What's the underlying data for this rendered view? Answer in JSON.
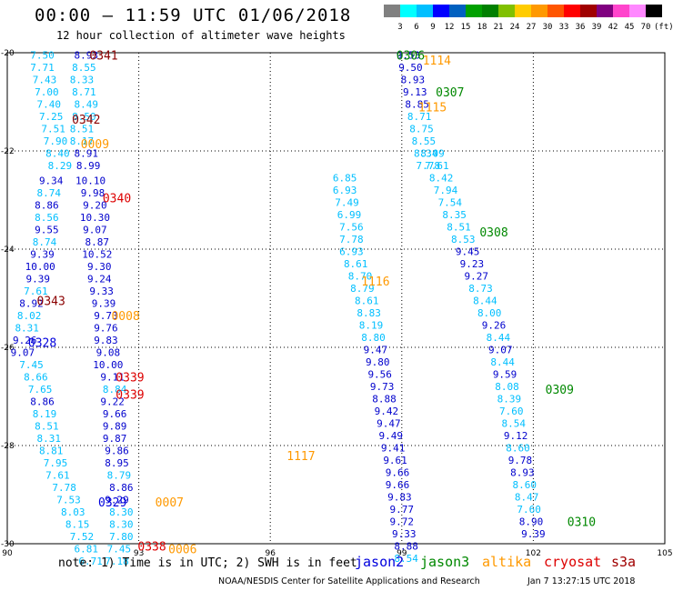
{
  "header": {
    "title": "00:00 – 11:59 UTC 01/06/2018",
    "subtitle": "12 hour collection of altimeter wave heights"
  },
  "colorbar": {
    "unit": "(ft)",
    "labels": [
      "3",
      "6",
      "9",
      "12",
      "15",
      "18",
      "21",
      "24",
      "27",
      "30",
      "33",
      "36",
      "39",
      "42",
      "45",
      "70"
    ],
    "colors": [
      "#808080",
      "#00ffff",
      "#00bfff",
      "#0000ff",
      "#0060c0",
      "#00a000",
      "#008000",
      "#80c000",
      "#ffcc00",
      "#ff9900",
      "#ff5500",
      "#ff0000",
      "#a00000",
      "#800080",
      "#ff44cc",
      "#ff88ff",
      "#000000"
    ]
  },
  "footer": {
    "note": "note: 1) Time is in UTC; 2) SWH is in feet",
    "credit": "NOAA/NESDIS Center for Satellite Applications and Research",
    "timestamp": "Jan 7 13:27:15 UTC 2018",
    "missions": [
      {
        "name": "jason2",
        "color": "#0000dd"
      },
      {
        "name": "jason3",
        "color": "#008800"
      },
      {
        "name": "altika",
        "color": "#ff9900"
      },
      {
        "name": "cryosat",
        "color": "#dd0000"
      },
      {
        "name": "s3a",
        "color": "#a00000"
      }
    ]
  },
  "chart_data": {
    "type": "scatter",
    "xlim": [
      90,
      105
    ],
    "ylim": [
      -30,
      -20
    ],
    "x_ticks": [
      90,
      93,
      96,
      99,
      102,
      105
    ],
    "y_ticks": [
      -20,
      -22,
      -24,
      -26,
      -28,
      -30
    ],
    "grid": true,
    "colors": {
      "low": "#00bfff",
      "mid": "#0000cd"
    },
    "tracks": [
      {
        "points": [
          {
            "x": 90.8,
            "y": -20.05,
            "v": "7.50"
          },
          {
            "x": 90.8,
            "y": -20.3,
            "v": "7.71"
          },
          {
            "x": 90.85,
            "y": -20.55,
            "v": "7.43"
          },
          {
            "x": 90.9,
            "y": -20.8,
            "v": "7.00"
          },
          {
            "x": 90.95,
            "y": -21.05,
            "v": "7.40"
          },
          {
            "x": 91.0,
            "y": -21.3,
            "v": "7.25"
          },
          {
            "x": 91.05,
            "y": -21.55,
            "v": "7.51"
          },
          {
            "x": 91.1,
            "y": -21.8,
            "v": "7.90"
          },
          {
            "x": 91.15,
            "y": -22.05,
            "v": "8.40"
          },
          {
            "x": 91.2,
            "y": -22.3,
            "v": "8.29"
          },
          {
            "x": 91.0,
            "y": -22.6,
            "v": "9.34"
          },
          {
            "x": 90.95,
            "y": -22.85,
            "v": "8.74"
          },
          {
            "x": 90.9,
            "y": -23.1,
            "v": "8.86"
          },
          {
            "x": 90.9,
            "y": -23.35,
            "v": "8.56"
          },
          {
            "x": 90.9,
            "y": -23.6,
            "v": "9.55"
          },
          {
            "x": 90.85,
            "y": -23.85,
            "v": "8.74"
          },
          {
            "x": 90.8,
            "y": -24.1,
            "v": "9.39"
          },
          {
            "x": 90.75,
            "y": -24.35,
            "v": "10.00"
          },
          {
            "x": 90.7,
            "y": -24.6,
            "v": "9.39"
          },
          {
            "x": 90.65,
            "y": -24.85,
            "v": "7.61"
          },
          {
            "x": 90.55,
            "y": -25.1,
            "v": "8.92"
          },
          {
            "x": 90.5,
            "y": -25.35,
            "v": "8.02"
          },
          {
            "x": 90.45,
            "y": -25.6,
            "v": "8.31"
          },
          {
            "x": 90.4,
            "y": -25.85,
            "v": "9.26"
          },
          {
            "x": 90.35,
            "y": -26.1,
            "v": "9.07"
          },
          {
            "x": 90.55,
            "y": -26.35,
            "v": "7.45"
          },
          {
            "x": 90.65,
            "y": -26.6,
            "v": "8.66"
          },
          {
            "x": 90.75,
            "y": -26.85,
            "v": "7.65"
          },
          {
            "x": 90.8,
            "y": -27.1,
            "v": "8.86"
          },
          {
            "x": 90.85,
            "y": -27.35,
            "v": "8.19"
          },
          {
            "x": 90.9,
            "y": -27.6,
            "v": "8.51"
          },
          {
            "x": 90.95,
            "y": -27.85,
            "v": "8.31"
          },
          {
            "x": 91.0,
            "y": -28.1,
            "v": "8.81"
          },
          {
            "x": 91.1,
            "y": -28.35,
            "v": "7.95"
          },
          {
            "x": 91.15,
            "y": -28.6,
            "v": "7.61"
          },
          {
            "x": 91.3,
            "y": -28.85,
            "v": "7.78"
          },
          {
            "x": 91.4,
            "y": -29.1,
            "v": "7.53"
          },
          {
            "x": 91.5,
            "y": -29.35,
            "v": "8.03"
          },
          {
            "x": 91.6,
            "y": -29.6,
            "v": "8.15"
          },
          {
            "x": 91.7,
            "y": -29.85,
            "v": "7.52"
          },
          {
            "x": 91.8,
            "y": -30.1,
            "v": "6.81"
          },
          {
            "x": 91.9,
            "y": -30.35,
            "v": "6.71"
          }
        ]
      },
      {
        "points": [
          {
            "x": 91.8,
            "y": -20.05,
            "v": "8.93"
          },
          {
            "x": 91.75,
            "y": -20.3,
            "v": "8.55"
          },
          {
            "x": 91.7,
            "y": -20.55,
            "v": "8.33"
          },
          {
            "x": 91.75,
            "y": -20.8,
            "v": "8.71"
          },
          {
            "x": 91.8,
            "y": -21.05,
            "v": "8.49"
          },
          {
            "x": 91.75,
            "y": -21.3,
            "v": "8.50"
          },
          {
            "x": 91.7,
            "y": -21.55,
            "v": "8.51"
          },
          {
            "x": 91.7,
            "y": -21.8,
            "v": "8.17"
          },
          {
            "x": 91.8,
            "y": -22.05,
            "v": "8.91"
          },
          {
            "x": 91.85,
            "y": -22.3,
            "v": "8.99"
          },
          {
            "x": 91.9,
            "y": -22.6,
            "v": "10.10"
          },
          {
            "x": 91.95,
            "y": -22.85,
            "v": "9.98"
          },
          {
            "x": 92.0,
            "y": -23.1,
            "v": "9.20"
          },
          {
            "x": 92.0,
            "y": -23.35,
            "v": "10.30"
          },
          {
            "x": 92.0,
            "y": -23.6,
            "v": "9.07"
          },
          {
            "x": 92.05,
            "y": -23.85,
            "v": "8.87"
          },
          {
            "x": 92.05,
            "y": -24.1,
            "v": "10.52"
          },
          {
            "x": 92.1,
            "y": -24.35,
            "v": "9.30"
          },
          {
            "x": 92.1,
            "y": -24.6,
            "v": "9.24"
          },
          {
            "x": 92.15,
            "y": -24.85,
            "v": "9.33"
          },
          {
            "x": 92.2,
            "y": -25.1,
            "v": "9.39"
          },
          {
            "x": 92.25,
            "y": -25.35,
            "v": "9.73"
          },
          {
            "x": 92.25,
            "y": -25.6,
            "v": "9.76"
          },
          {
            "x": 92.25,
            "y": -25.85,
            "v": "9.83"
          },
          {
            "x": 92.3,
            "y": -26.1,
            "v": "9.08"
          },
          {
            "x": 92.3,
            "y": -26.35,
            "v": "10.00"
          },
          {
            "x": 92.4,
            "y": -26.6,
            "v": "9.11"
          },
          {
            "x": 92.45,
            "y": -26.85,
            "v": "8.84"
          },
          {
            "x": 92.4,
            "y": -27.1,
            "v": "9.22"
          },
          {
            "x": 92.45,
            "y": -27.35,
            "v": "9.66"
          },
          {
            "x": 92.45,
            "y": -27.6,
            "v": "9.89"
          },
          {
            "x": 92.45,
            "y": -27.85,
            "v": "9.87"
          },
          {
            "x": 92.5,
            "y": -28.1,
            "v": "9.86"
          },
          {
            "x": 92.5,
            "y": -28.35,
            "v": "8.95"
          },
          {
            "x": 92.55,
            "y": -28.6,
            "v": "8.79"
          },
          {
            "x": 92.6,
            "y": -28.85,
            "v": "8.86"
          },
          {
            "x": 92.5,
            "y": -29.1,
            "v": "9.29"
          },
          {
            "x": 92.6,
            "y": -29.35,
            "v": "8.30"
          },
          {
            "x": 92.6,
            "y": -29.6,
            "v": "8.30"
          },
          {
            "x": 92.6,
            "y": -29.85,
            "v": "7.80"
          },
          {
            "x": 92.55,
            "y": -30.1,
            "v": "7.45"
          },
          {
            "x": 92.5,
            "y": -30.35,
            "v": "7.18"
          }
        ]
      },
      {
        "points": [
          {
            "x": 97.7,
            "y": -22.55,
            "v": "6.85"
          },
          {
            "x": 97.7,
            "y": -22.8,
            "v": "6.93"
          },
          {
            "x": 97.75,
            "y": -23.05,
            "v": "7.49"
          },
          {
            "x": 97.8,
            "y": -23.3,
            "v": "6.99"
          },
          {
            "x": 97.85,
            "y": -23.55,
            "v": "7.56"
          },
          {
            "x": 97.85,
            "y": -23.8,
            "v": "7.78"
          },
          {
            "x": 97.85,
            "y": -24.05,
            "v": "6.93"
          },
          {
            "x": 97.95,
            "y": -24.3,
            "v": "8.61"
          },
          {
            "x": 98.05,
            "y": -24.55,
            "v": "8.70"
          },
          {
            "x": 98.1,
            "y": -24.8,
            "v": "8.79"
          },
          {
            "x": 98.2,
            "y": -25.05,
            "v": "8.61"
          },
          {
            "x": 98.25,
            "y": -25.3,
            "v": "8.83"
          },
          {
            "x": 98.3,
            "y": -25.55,
            "v": "8.19"
          },
          {
            "x": 98.35,
            "y": -25.8,
            "v": "8.80"
          },
          {
            "x": 98.4,
            "y": -26.05,
            "v": "9.47"
          },
          {
            "x": 98.45,
            "y": -26.3,
            "v": "9.80"
          },
          {
            "x": 98.5,
            "y": -26.55,
            "v": "9.56"
          },
          {
            "x": 98.55,
            "y": -26.8,
            "v": "9.73"
          },
          {
            "x": 98.6,
            "y": -27.05,
            "v": "8.88"
          },
          {
            "x": 98.65,
            "y": -27.3,
            "v": "9.42"
          },
          {
            "x": 98.7,
            "y": -27.55,
            "v": "9.47"
          },
          {
            "x": 98.75,
            "y": -27.8,
            "v": "9.49"
          },
          {
            "x": 98.8,
            "y": -28.05,
            "v": "9.41"
          },
          {
            "x": 98.85,
            "y": -28.3,
            "v": "9.61"
          },
          {
            "x": 98.9,
            "y": -28.55,
            "v": "9.66"
          },
          {
            "x": 98.9,
            "y": -28.8,
            "v": "9.66"
          },
          {
            "x": 98.95,
            "y": -29.05,
            "v": "9.83"
          },
          {
            "x": 99.0,
            "y": -29.3,
            "v": "9.77"
          },
          {
            "x": 99.0,
            "y": -29.55,
            "v": "9.72"
          },
          {
            "x": 99.05,
            "y": -29.8,
            "v": "9.33"
          },
          {
            "x": 99.1,
            "y": -30.05,
            "v": "8.88"
          },
          {
            "x": 99.1,
            "y": -30.3,
            "v": "8.54"
          }
        ]
      },
      {
        "points": [
          {
            "x": 99.15,
            "y": -20.05,
            "v": "9.53"
          },
          {
            "x": 99.2,
            "y": -20.3,
            "v": "9.50"
          },
          {
            "x": 99.25,
            "y": -20.55,
            "v": "8.93"
          },
          {
            "x": 99.3,
            "y": -20.8,
            "v": "9.13"
          },
          {
            "x": 99.35,
            "y": -21.05,
            "v": "8.85"
          },
          {
            "x": 99.4,
            "y": -21.3,
            "v": "8.71"
          },
          {
            "x": 99.45,
            "y": -21.55,
            "v": "8.75"
          },
          {
            "x": 99.5,
            "y": -21.8,
            "v": "8.55"
          },
          {
            "x": 99.55,
            "y": -22.05,
            "v": "8.34"
          },
          {
            "x": 99.6,
            "y": -22.3,
            "v": "7.78"
          }
        ]
      },
      {
        "points": [
          {
            "x": 99.7,
            "y": -22.05,
            "v": "8.09"
          },
          {
            "x": 99.8,
            "y": -22.3,
            "v": "7.61"
          },
          {
            "x": 99.9,
            "y": -22.55,
            "v": "8.42"
          },
          {
            "x": 100.0,
            "y": -22.8,
            "v": "7.94"
          },
          {
            "x": 100.1,
            "y": -23.05,
            "v": "7.54"
          },
          {
            "x": 100.2,
            "y": -23.3,
            "v": "8.35"
          },
          {
            "x": 100.3,
            "y": -23.55,
            "v": "8.51"
          },
          {
            "x": 100.4,
            "y": -23.8,
            "v": "8.53"
          },
          {
            "x": 100.5,
            "y": -24.05,
            "v": "9.45"
          },
          {
            "x": 100.6,
            "y": -24.3,
            "v": "9.23"
          },
          {
            "x": 100.7,
            "y": -24.55,
            "v": "9.27"
          },
          {
            "x": 100.8,
            "y": -24.8,
            "v": "8.73"
          },
          {
            "x": 100.9,
            "y": -25.05,
            "v": "8.44"
          },
          {
            "x": 101.0,
            "y": -25.3,
            "v": "8.00"
          },
          {
            "x": 101.1,
            "y": -25.55,
            "v": "9.26"
          },
          {
            "x": 101.2,
            "y": -25.8,
            "v": "8.44"
          },
          {
            "x": 101.25,
            "y": -26.05,
            "v": "9.07"
          },
          {
            "x": 101.3,
            "y": -26.3,
            "v": "8.44"
          },
          {
            "x": 101.35,
            "y": -26.55,
            "v": "9.59"
          },
          {
            "x": 101.4,
            "y": -26.8,
            "v": "8.08"
          },
          {
            "x": 101.45,
            "y": -27.05,
            "v": "8.39"
          },
          {
            "x": 101.5,
            "y": -27.3,
            "v": "7.60"
          },
          {
            "x": 101.55,
            "y": -27.55,
            "v": "8.54"
          },
          {
            "x": 101.6,
            "y": -27.8,
            "v": "9.12"
          },
          {
            "x": 101.65,
            "y": -28.05,
            "v": "8.60"
          },
          {
            "x": 101.7,
            "y": -28.3,
            "v": "9.78"
          },
          {
            "x": 101.75,
            "y": -28.55,
            "v": "8.93"
          },
          {
            "x": 101.8,
            "y": -28.8,
            "v": "8.60"
          },
          {
            "x": 101.85,
            "y": -29.05,
            "v": "8.47"
          },
          {
            "x": 101.9,
            "y": -29.3,
            "v": "7.60"
          },
          {
            "x": 101.95,
            "y": -29.55,
            "v": "8.90"
          },
          {
            "x": 102.0,
            "y": -29.8,
            "v": "9.39"
          }
        ]
      }
    ],
    "pass_labels": [
      {
        "text": "0341",
        "x": 92.2,
        "y": -20.05,
        "color": "#8b0000"
      },
      {
        "text": "0342",
        "x": 91.8,
        "y": -21.35,
        "color": "#8b0000"
      },
      {
        "text": "0009",
        "x": 92.0,
        "y": -21.85,
        "color": "#ff9900"
      },
      {
        "text": "0340",
        "x": 92.5,
        "y": -22.95,
        "color": "#dd0000"
      },
      {
        "text": "0343",
        "x": 91.0,
        "y": -25.05,
        "color": "#8b0000"
      },
      {
        "text": "0008",
        "x": 92.7,
        "y": -25.35,
        "color": "#ff9900"
      },
      {
        "text": "0328",
        "x": 90.8,
        "y": -25.9,
        "color": "#0000dd"
      },
      {
        "text": "0339",
        "x": 92.8,
        "y": -26.6,
        "color": "#dd0000"
      },
      {
        "text": "0339",
        "x": 92.8,
        "y": -26.95,
        "color": "#dd0000"
      },
      {
        "text": "0329",
        "x": 92.4,
        "y": -29.15,
        "color": "#0000dd"
      },
      {
        "text": "0007",
        "x": 93.7,
        "y": -29.15,
        "color": "#ff9900"
      },
      {
        "text": "0338",
        "x": 93.3,
        "y": -30.05,
        "color": "#dd0000"
      },
      {
        "text": "0006",
        "x": 94.0,
        "y": -30.1,
        "color": "#ff9900"
      },
      {
        "text": "0306",
        "x": 99.2,
        "y": -20.05,
        "color": "#008800"
      },
      {
        "text": "1114",
        "x": 99.8,
        "y": -20.15,
        "color": "#ff9900"
      },
      {
        "text": "0307",
        "x": 100.1,
        "y": -20.8,
        "color": "#008800"
      },
      {
        "text": "1115",
        "x": 99.7,
        "y": -21.1,
        "color": "#ff9900"
      },
      {
        "text": "0308",
        "x": 101.1,
        "y": -23.65,
        "color": "#008800"
      },
      {
        "text": "1116",
        "x": 98.4,
        "y": -24.65,
        "color": "#ff9900"
      },
      {
        "text": "0309",
        "x": 102.6,
        "y": -26.85,
        "color": "#008800"
      },
      {
        "text": "1117",
        "x": 96.7,
        "y": -28.2,
        "color": "#ff9900"
      },
      {
        "text": "0310",
        "x": 103.1,
        "y": -29.55,
        "color": "#008800"
      }
    ]
  }
}
